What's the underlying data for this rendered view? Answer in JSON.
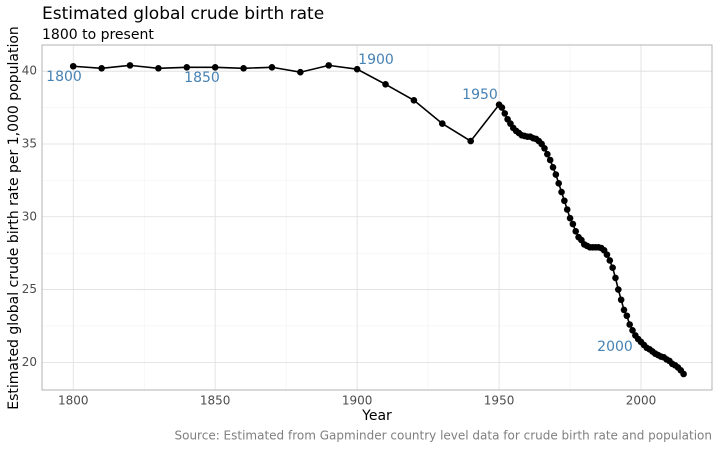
{
  "chart_data": {
    "type": "line",
    "title": "Estimated global crude birth rate",
    "subtitle": "1800 to present",
    "x_label": "Year",
    "y_label": "Estimated global crude birth rate per 1,000 population",
    "caption": "Source: Estimated from Gapminder country level data for crude birth rate and population",
    "annotations": [
      "1800",
      "1850",
      "1900",
      "1950",
      "2000"
    ],
    "xlim": [
      1789,
      2025
    ],
    "ylim": [
      18.1,
      41.8
    ],
    "xticks": [
      1800,
      1850,
      1900,
      1950,
      2000
    ],
    "yticks": [
      20,
      25,
      30,
      35,
      40
    ],
    "grid": true,
    "minor_grid": true,
    "series": [
      {
        "name": "Crude birth rate",
        "color": "#000000",
        "x": [
          1800,
          1810,
          1820,
          1830,
          1840,
          1850,
          1860,
          1870,
          1880,
          1890,
          1900,
          1910,
          1920,
          1930,
          1940,
          1950,
          1951,
          1952,
          1953,
          1954,
          1955,
          1956,
          1957,
          1958,
          1959,
          1960,
          1961,
          1962,
          1963,
          1964,
          1965,
          1966,
          1967,
          1968,
          1969,
          1970,
          1971,
          1972,
          1973,
          1974,
          1975,
          1976,
          1977,
          1978,
          1979,
          1980,
          1981,
          1982,
          1983,
          1984,
          1985,
          1986,
          1987,
          1988,
          1989,
          1990,
          1991,
          1992,
          1993,
          1994,
          1995,
          1996,
          1997,
          1998,
          1999,
          2000,
          2001,
          2002,
          2003,
          2004,
          2005,
          2006,
          2007,
          2008,
          2009,
          2010,
          2011,
          2012,
          2013,
          2014,
          2015
        ],
        "values": [
          40.34,
          40.2,
          40.4,
          40.2,
          40.27,
          40.27,
          40.2,
          40.27,
          39.93,
          40.4,
          40.14,
          39.1,
          38.0,
          36.4,
          35.2,
          37.7,
          37.5,
          37.1,
          36.7,
          36.4,
          36.1,
          35.9,
          35.75,
          35.6,
          35.55,
          35.5,
          35.5,
          35.4,
          35.35,
          35.2,
          35.0,
          34.7,
          34.3,
          33.9,
          33.4,
          32.9,
          32.3,
          31.7,
          31.1,
          30.5,
          29.9,
          29.5,
          29.0,
          28.6,
          28.4,
          28.1,
          28.0,
          27.9,
          27.9,
          27.9,
          27.9,
          27.85,
          27.7,
          27.4,
          27.0,
          26.5,
          25.8,
          25.0,
          24.3,
          23.6,
          23.2,
          22.6,
          22.2,
          21.85,
          21.6,
          21.4,
          21.2,
          21.0,
          20.9,
          20.75,
          20.6,
          20.5,
          20.4,
          20.35,
          20.2,
          20.1,
          19.9,
          19.8,
          19.65,
          19.45,
          19.2
        ]
      }
    ]
  }
}
